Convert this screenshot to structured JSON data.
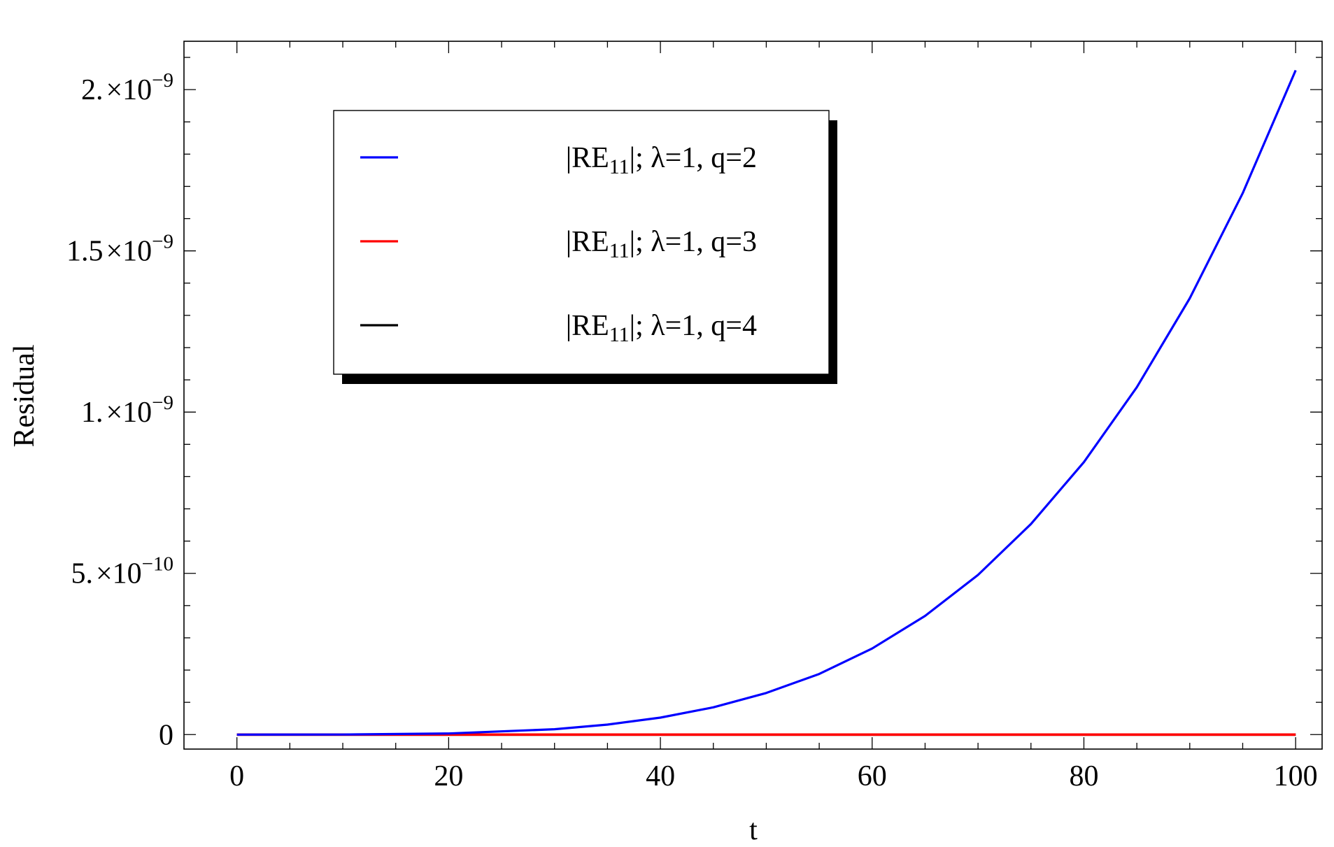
{
  "chart_data": {
    "type": "line",
    "xlabel": "t",
    "ylabel": "Residual",
    "xlim": [
      -5,
      102.5
    ],
    "ylim": [
      -4.5e-11,
      2.15e-09
    ],
    "x_ticks": [
      {
        "value": 0,
        "label": "0"
      },
      {
        "value": 20,
        "label": "20"
      },
      {
        "value": 40,
        "label": "40"
      },
      {
        "value": 60,
        "label": "60"
      },
      {
        "value": 80,
        "label": "80"
      },
      {
        "value": 100,
        "label": "100"
      }
    ],
    "y_ticks": [
      {
        "value": 0,
        "mantissa": "0",
        "exponent": ""
      },
      {
        "value": 5e-10,
        "mantissa": "5.",
        "exponent": "−10"
      },
      {
        "value": 1e-09,
        "mantissa": "1.",
        "exponent": "−9"
      },
      {
        "value": 1.5e-09,
        "mantissa": "1.5",
        "exponent": "−9"
      },
      {
        "value": 2e-09,
        "mantissa": "2.",
        "exponent": "−9"
      }
    ],
    "series": [
      {
        "name": "|RE11|; λ=1, q=2",
        "legend": {
          "pre": "|RE",
          "sub": "11",
          "post": "|; λ=1, q=2"
        },
        "color": "#0000ff",
        "x": [
          0,
          10,
          20,
          30,
          35,
          40,
          45,
          50,
          55,
          60,
          65,
          70,
          75,
          80,
          85,
          90,
          95,
          100
        ],
        "y": [
          0,
          2.06e-13,
          3.3e-12,
          1.67e-11,
          3.09e-11,
          5.27e-11,
          8.45e-11,
          1.29e-10,
          1.88e-10,
          2.67e-10,
          3.68e-10,
          4.95e-10,
          6.53e-10,
          8.45e-10,
          1.077e-09,
          1.353e-09,
          1.679e-09,
          2.06e-09
        ]
      },
      {
        "name": "|RE11|; λ=1, q=3",
        "legend": {
          "pre": "|RE",
          "sub": "11",
          "post": "|; λ=1, q=3"
        },
        "color": "#ff0000",
        "x": [
          0,
          100
        ],
        "y": [
          0,
          0
        ]
      },
      {
        "name": "|RE11|; λ=1, q=4",
        "legend": {
          "pre": "|RE",
          "sub": "11",
          "post": "|; λ=1, q=4"
        },
        "color": "#000000",
        "x": [
          0,
          100
        ],
        "y": [
          0,
          0
        ]
      }
    ],
    "legend_position": "top-left",
    "grid": false
  }
}
